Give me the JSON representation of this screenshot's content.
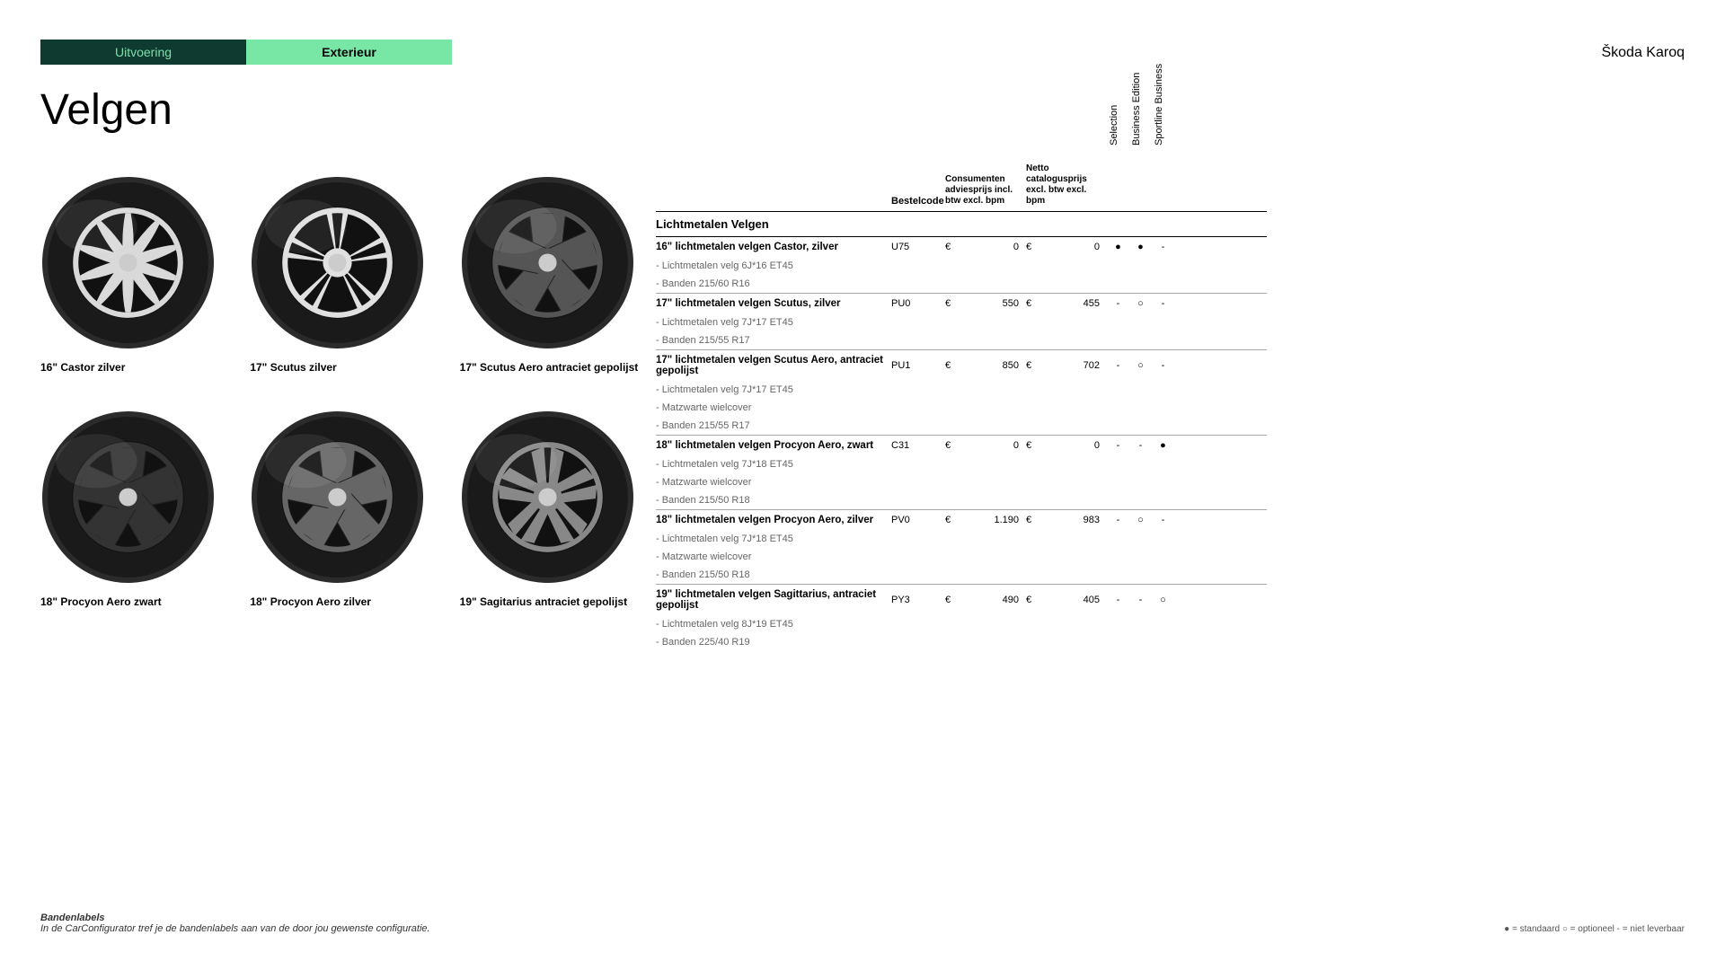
{
  "tabs": {
    "uitvoering": "Uitvoering",
    "exterieur": "Exterieur"
  },
  "brand": "Škoda Karoq",
  "page_title": "Velgen",
  "wheels": [
    {
      "label": "16\" Castor zilver",
      "tire": "#2b2b2b",
      "rim": "#d9d9d9",
      "spokes": 10,
      "style": "curved"
    },
    {
      "label": "17\" Scutus zilver",
      "tire": "#2b2b2b",
      "rim": "#e0e0e0",
      "spokes": 5,
      "style": "split"
    },
    {
      "label": "17\" Scutus Aero antraciet gepolijst",
      "tire": "#2b2b2b",
      "rim": "#555",
      "spokes": 5,
      "style": "aero"
    },
    {
      "label": "18\" Procyon Aero zwart",
      "tire": "#2b2b2b",
      "rim": "#333",
      "spokes": 5,
      "style": "aero"
    },
    {
      "label": "18\" Procyon Aero zilver",
      "tire": "#2b2b2b",
      "rim": "#666",
      "spokes": 5,
      "style": "aero"
    },
    {
      "label": "19\" Sagitarius antraciet gepolijst",
      "tire": "#2b2b2b",
      "rim": "#888",
      "spokes": 5,
      "style": "angular"
    }
  ],
  "table": {
    "headers": {
      "code": "Bestelcode",
      "price1": "Consumenten adviesprijs incl. btw excl. bpm",
      "price2": "Netto catalogusprijs excl. btw excl. bpm",
      "trims": [
        "Selection",
        "Business Edition",
        "Sportline Business"
      ]
    },
    "section_title": "Lichtmetalen Velgen",
    "items": [
      {
        "name": "16\" lichtmetalen velgen Castor, zilver",
        "code": "U75",
        "p1": "0",
        "p2": "0",
        "marks": [
          "●",
          "●",
          "-"
        ],
        "subs": [
          "- Lichtmetalen velg 6J*16 ET45",
          "- Banden 215/60 R16"
        ]
      },
      {
        "name": "17\" lichtmetalen velgen Scutus, zilver",
        "code": "PU0",
        "p1": "550",
        "p2": "455",
        "marks": [
          "-",
          "○",
          "-"
        ],
        "subs": [
          "- Lichtmetalen velg 7J*17 ET45",
          "- Banden 215/55 R17"
        ]
      },
      {
        "name": "17\" lichtmetalen velgen Scutus Aero, antraciet gepolijst",
        "code": "PU1",
        "p1": "850",
        "p2": "702",
        "marks": [
          "-",
          "○",
          "-"
        ],
        "subs": [
          "- Lichtmetalen velg 7J*17 ET45",
          "- Matzwarte wielcover",
          "- Banden 215/55 R17"
        ]
      },
      {
        "name": "18\" lichtmetalen velgen Procyon Aero, zwart",
        "code": "C31",
        "p1": "0",
        "p2": "0",
        "marks": [
          "-",
          "-",
          "●"
        ],
        "subs": [
          "- Lichtmetalen velg 7J*18 ET45",
          "- Matzwarte wielcover",
          "- Banden 215/50 R18"
        ]
      },
      {
        "name": "18\" lichtmetalen velgen Procyon Aero, zilver",
        "code": "PV0",
        "p1": "1.190",
        "p2": "983",
        "marks": [
          "-",
          "○",
          "-"
        ],
        "subs": [
          "- Lichtmetalen velg 7J*18 ET45",
          "- Matzwarte wielcover",
          "- Banden 215/50 R18"
        ]
      },
      {
        "name": "19\" lichtmetalen velgen Sagittarius, antraciet gepolijst",
        "code": "PY3",
        "p1": "490",
        "p2": "405",
        "marks": [
          "-",
          "-",
          "○"
        ],
        "subs": [
          "- Lichtmetalen velg 8J*19 ET45",
          "- Banden 225/40 R19"
        ]
      }
    ]
  },
  "footer": {
    "title": "Bandenlabels",
    "text": "In de CarConfigurator tref je de bandenlabels aan van de door jou gewenste configuratie."
  },
  "legend": "● = standaard    ○ = optioneel    - = niet leverbaar",
  "currency": "€"
}
